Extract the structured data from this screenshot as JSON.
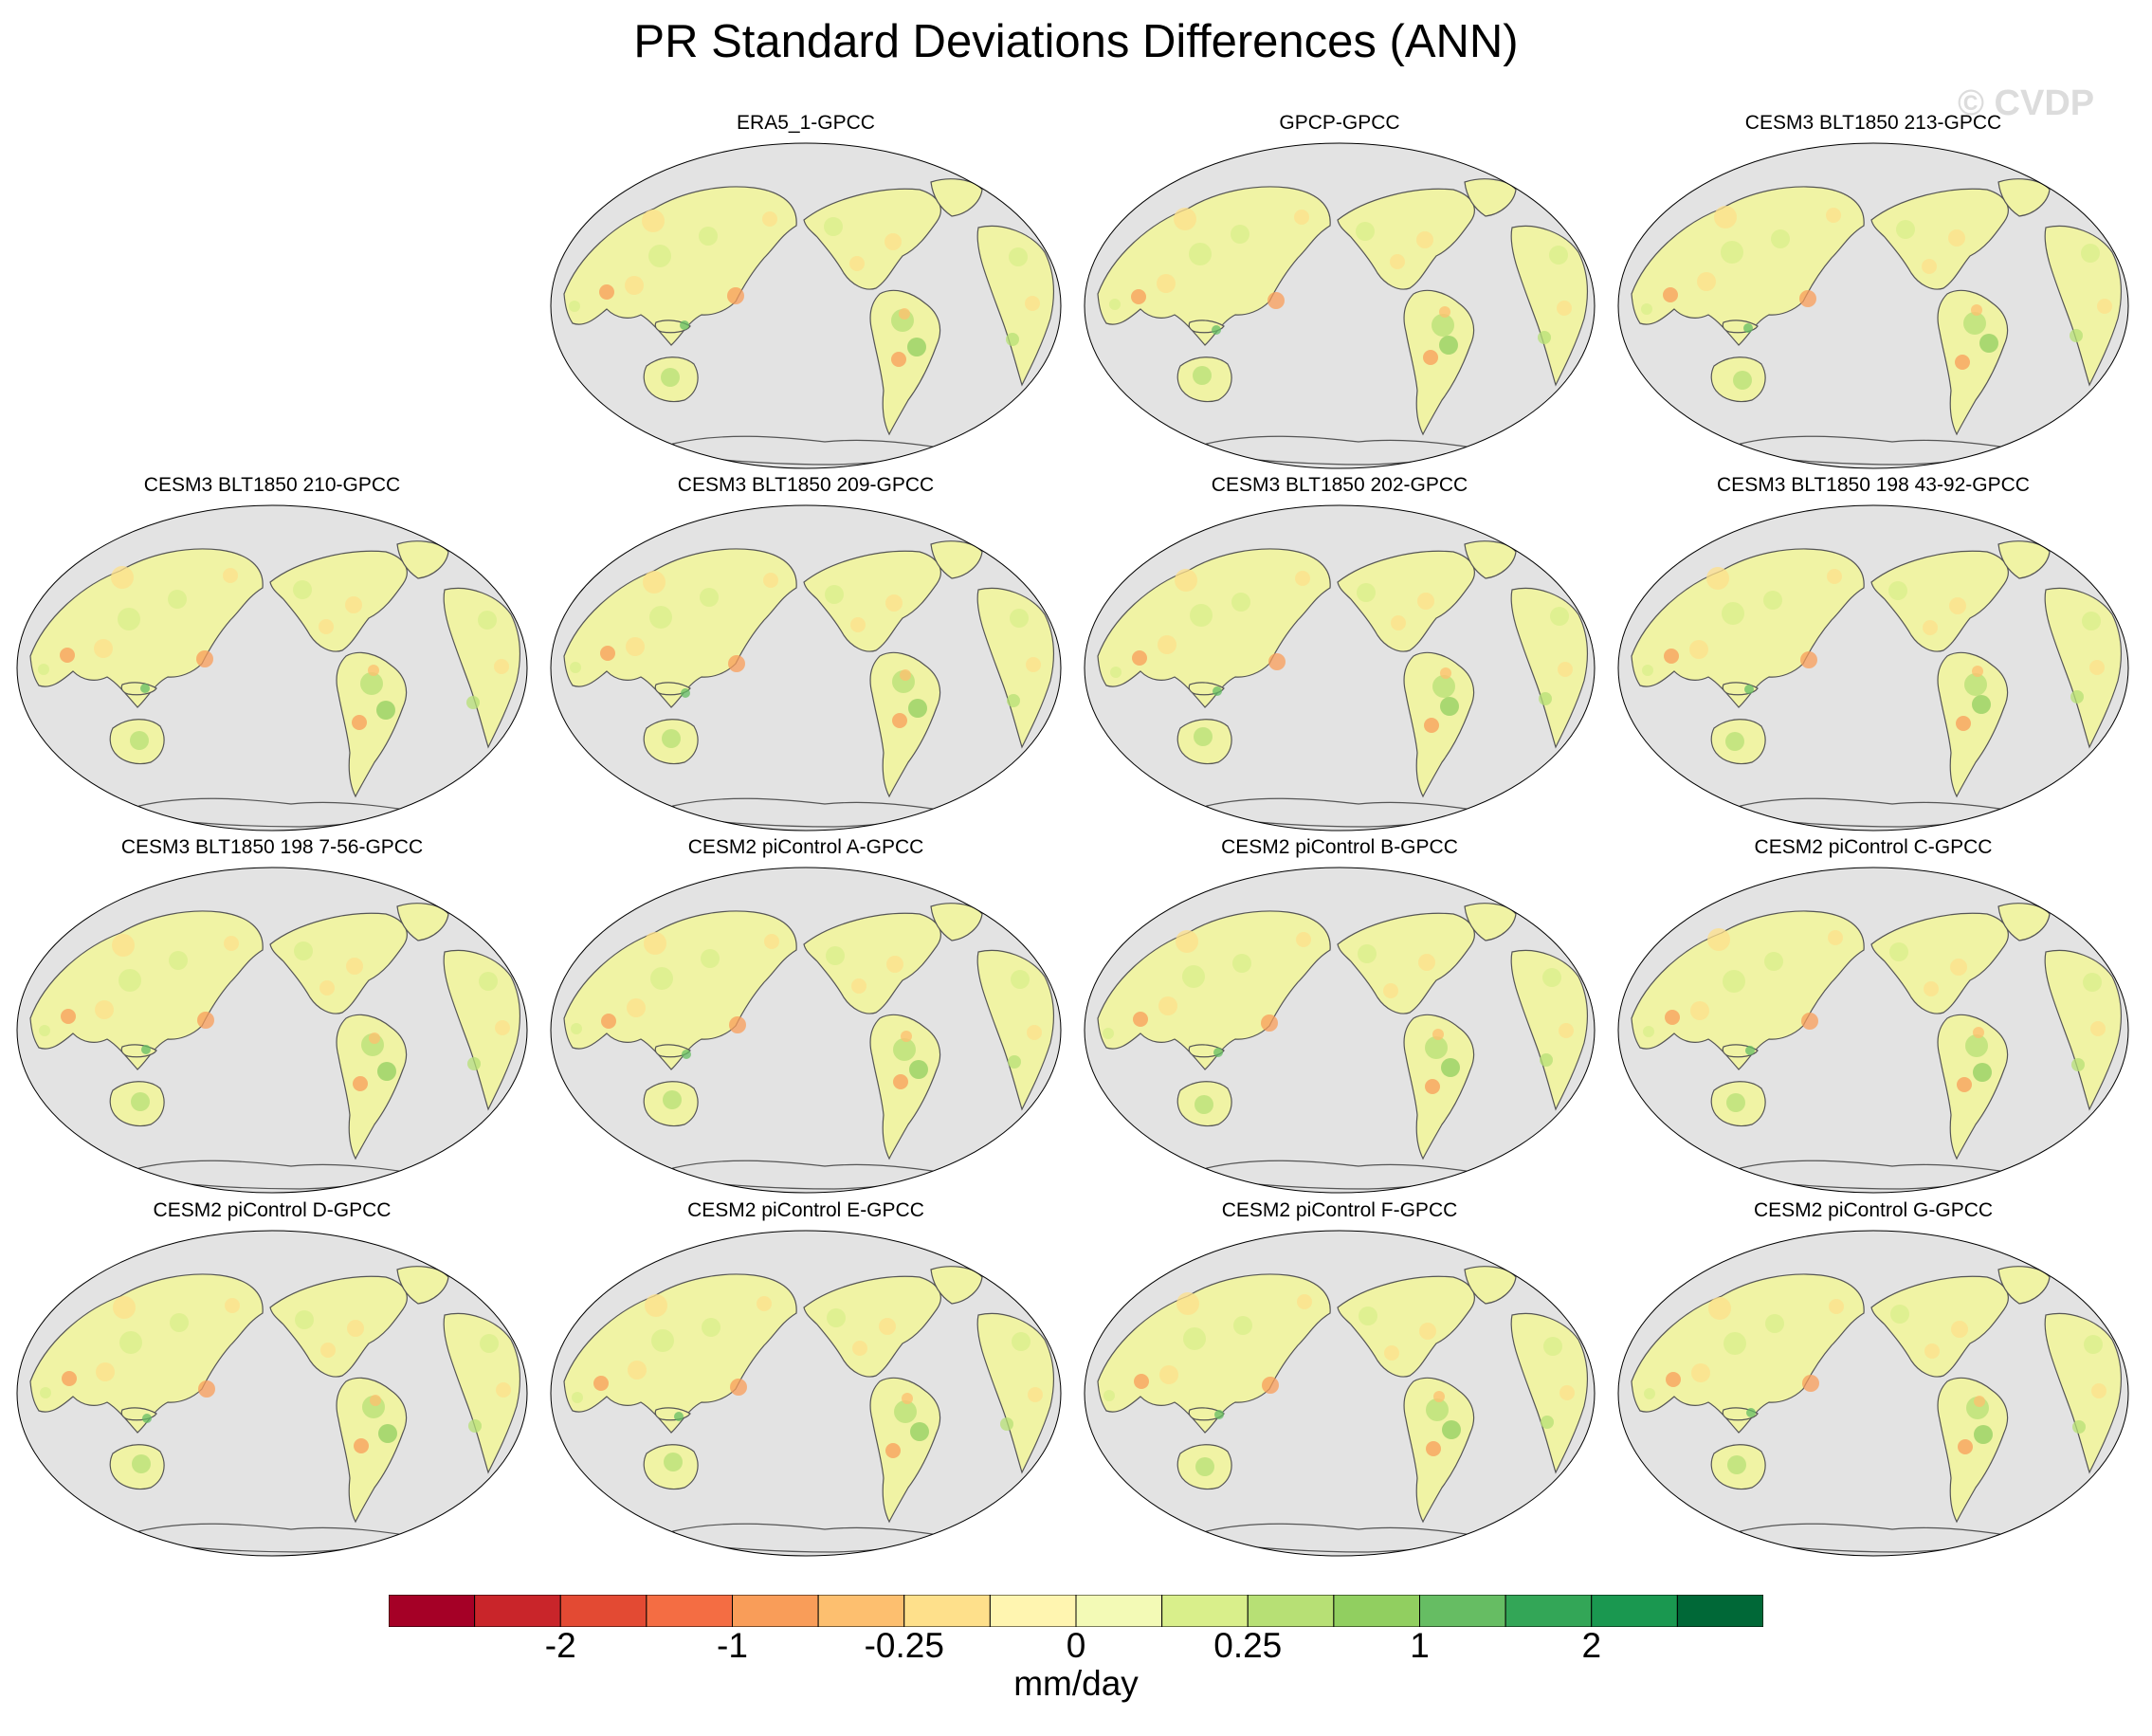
{
  "title": "PR Standard Deviations Differences (ANN)",
  "watermark": "© CVDP",
  "panels": [
    {
      "title": "ERA5_1-GPCC"
    },
    {
      "title": "GPCP-GPCC"
    },
    {
      "title": "CESM3 BLT1850 213-GPCC"
    },
    {
      "title": "CESM3 BLT1850 210-GPCC"
    },
    {
      "title": "CESM3 BLT1850 209-GPCC"
    },
    {
      "title": "CESM3 BLT1850 202-GPCC"
    },
    {
      "title": "CESM3 BLT1850 198 43-92-GPCC"
    },
    {
      "title": "CESM3 BLT1850 198 7-56-GPCC"
    },
    {
      "title": "CESM2 piControl A-GPCC"
    },
    {
      "title": "CESM2 piControl B-GPCC"
    },
    {
      "title": "CESM2 piControl C-GPCC"
    },
    {
      "title": "CESM2 piControl D-GPCC"
    },
    {
      "title": "CESM2 piControl E-GPCC"
    },
    {
      "title": "CESM2 piControl F-GPCC"
    },
    {
      "title": "CESM2 piControl G-GPCC"
    }
  ],
  "colorbar": {
    "units": "mm/day",
    "colors": [
      "#a50026",
      "#c9252a",
      "#e34a33",
      "#f46d43",
      "#f99d59",
      "#fdbf6f",
      "#fee08b",
      "#fff5b0",
      "#f3fab6",
      "#d9ef8b",
      "#b7e075",
      "#91cf60",
      "#66bd63",
      "#33a657",
      "#1a9850",
      "#006837"
    ],
    "tick_labels": [
      {
        "text": "-2",
        "boundary": 2
      },
      {
        "text": "-1",
        "boundary": 4
      },
      {
        "text": "-0.25",
        "boundary": 6
      },
      {
        "text": "0",
        "boundary": 8
      },
      {
        "text": "0.25",
        "boundary": 10
      },
      {
        "text": "1",
        "boundary": 12
      },
      {
        "text": "2",
        "boundary": 14
      }
    ]
  },
  "map_colors": {
    "ocean": "#e3e3e3",
    "land_base": "#f0f3a4",
    "coastline": "#555555"
  }
}
